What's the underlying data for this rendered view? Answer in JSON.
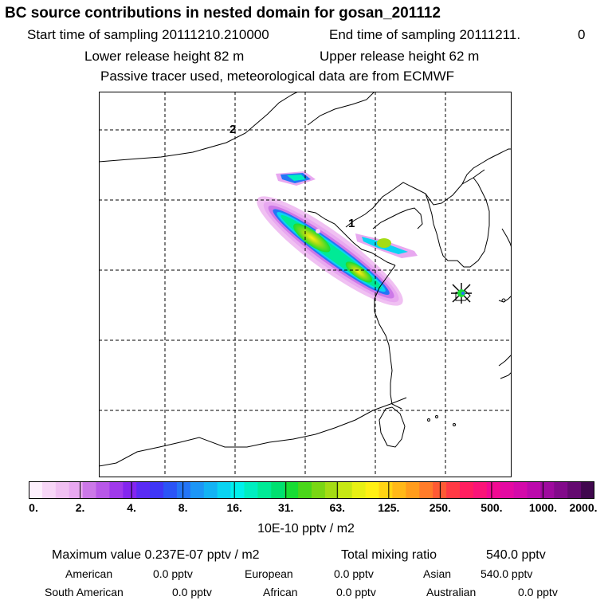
{
  "header": {
    "title": "BC  source contributions in nested domain for gosan_201112",
    "start_label": "Start time of sampling 20111210.210000",
    "end_label": "End time of sampling 20111211.",
    "end_hour": "0",
    "lower_release": "Lower release height   82 m",
    "upper_release": "Upper release height   62 m",
    "tracer_note": "Passive tracer used, meteorological data are from ECMWF"
  },
  "map": {
    "grid_labels": [
      "2",
      "1"
    ],
    "station_marker": "station-star-icon"
  },
  "colorbar": {
    "colors": [
      "#fdf0fd",
      "#f7d6f7",
      "#f0c0f2",
      "#e8a8f0",
      "#cc78e8",
      "#b858e8",
      "#a03aeb",
      "#8426ef",
      "#5a2cf4",
      "#3f36f6",
      "#2b54f6",
      "#2475f6",
      "#1d96f6",
      "#13b3f4",
      "#0ad4f2",
      "#00f0ec",
      "#00eec0",
      "#00ea96",
      "#00e070",
      "#18dc34",
      "#4ad61a",
      "#7ad614",
      "#a4dc14",
      "#c6e814",
      "#e8f014",
      "#fff014",
      "#ffd414",
      "#ffb818",
      "#ff9c1c",
      "#ff7c2a",
      "#ff5a34",
      "#ff3a44",
      "#ff1e60",
      "#fa1478",
      "#f00a92",
      "#e40aa2",
      "#d40aaa",
      "#bc0aac",
      "#9e0a9e",
      "#820a8a",
      "#640a70",
      "#40084e"
    ],
    "ticks": [
      "0.",
      "2.",
      "4.",
      "8.",
      "16.",
      "31.",
      "63.",
      "125.",
      "250.",
      "500.",
      "1000.",
      "2000."
    ],
    "units": "10E-10 pptv / m2"
  },
  "stats": {
    "max_label": "Maximum value  0.237E-07 pptv / m2",
    "total_label": "Total mixing ratio",
    "total_value": "540.0 pptv",
    "regions": [
      {
        "name": "American",
        "value": "0.0 pptv"
      },
      {
        "name": "European",
        "value": "0.0 pptv"
      },
      {
        "name": "Asian",
        "value": "540.0 pptv"
      },
      {
        "name": "South American",
        "value": "0.0 pptv"
      },
      {
        "name": "African",
        "value": "0.0 pptv"
      },
      {
        "name": "Australian",
        "value": "0.0 pptv"
      }
    ]
  }
}
